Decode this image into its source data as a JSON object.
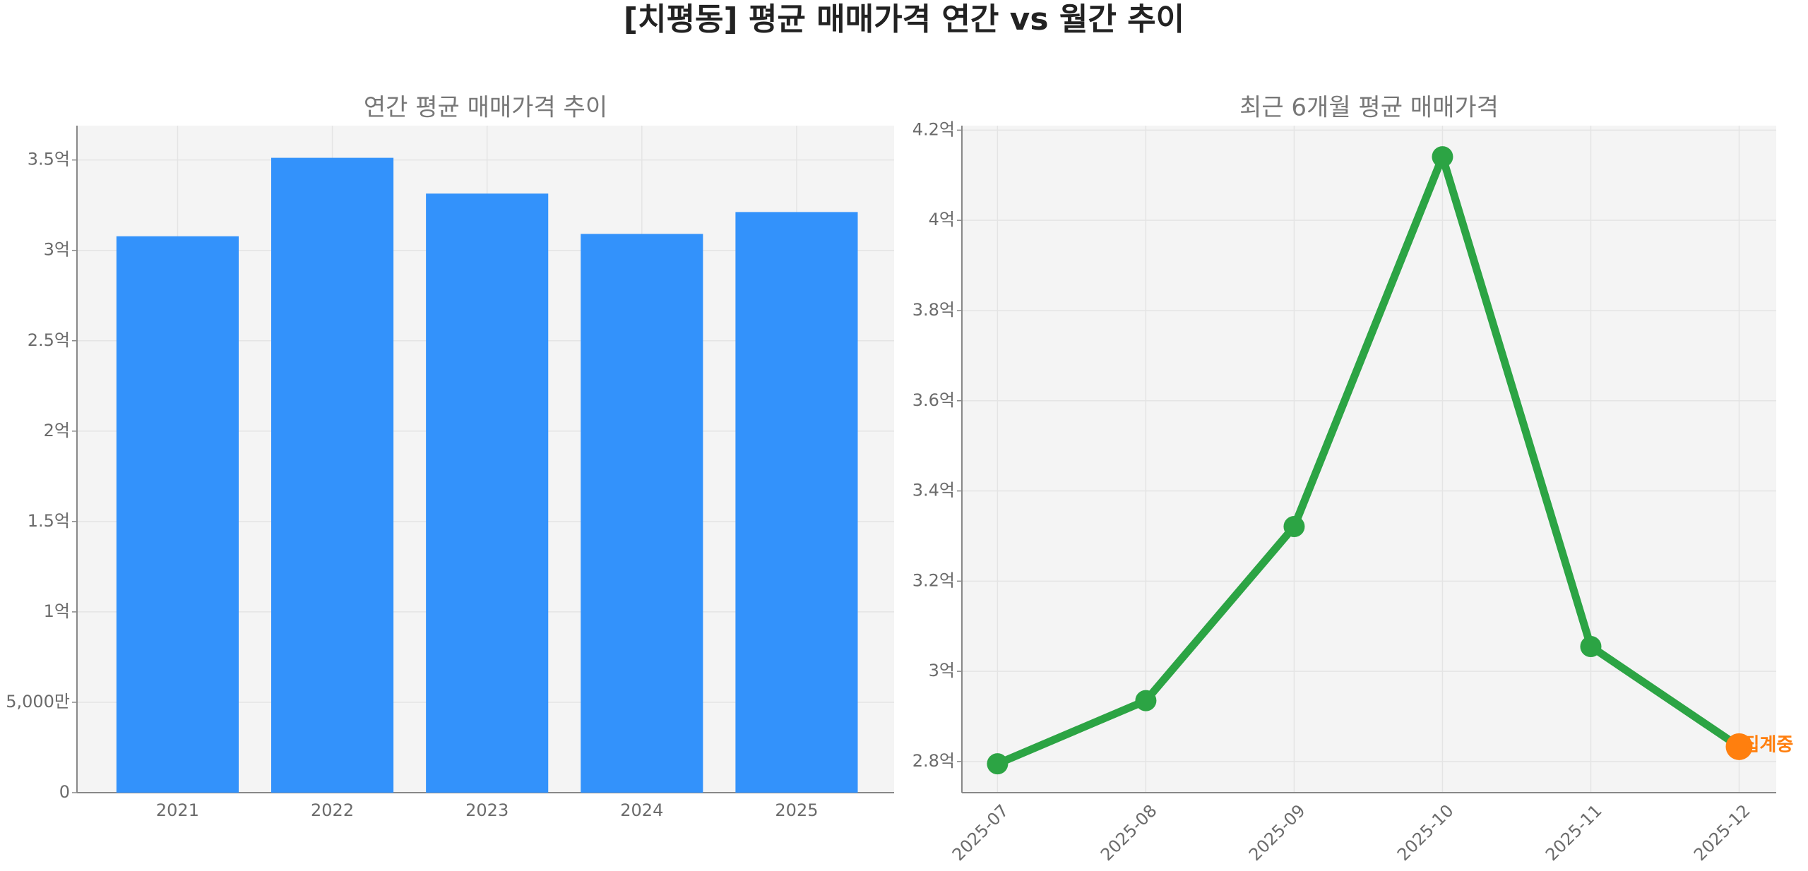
{
  "title": "[치평동] 평균 매매가격 연간 vs 월간 추이",
  "chart_data": [
    {
      "type": "bar",
      "title": "연간 평균 매매가격 추이",
      "categories": [
        "2021",
        "2022",
        "2023",
        "2024",
        "2025"
      ],
      "values": [
        3.078,
        3.512,
        3.314,
        3.091,
        3.212
      ],
      "color": "#3392fb",
      "ylim": [
        0,
        3.69
      ],
      "yticks": [
        0,
        {
          "value": 0.5,
          "label": "5,000만"
        },
        {
          "value": 1,
          "label": "1억"
        },
        {
          "value": 1.5,
          "label": "1.5억"
        },
        {
          "value": 2,
          "label": "2억"
        },
        {
          "value": 2.5,
          "label": "2.5억"
        },
        {
          "value": 3,
          "label": "3억"
        },
        {
          "value": 3.5,
          "label": "3.5억"
        }
      ],
      "grid": true
    },
    {
      "type": "line",
      "title": "최근 6개월 평균 매매가격",
      "categories": [
        "2025-07",
        "2025-08",
        "2025-09",
        "2025-10",
        "2025-11",
        "2025-12"
      ],
      "values": [
        2.795,
        2.935,
        3.321,
        4.141,
        3.055,
        2.833
      ],
      "color": "#2ca444",
      "ylim": [
        2.731,
        4.21
      ],
      "yticks": [
        {
          "value": 2.8,
          "label": "2.8억"
        },
        {
          "value": 3,
          "label": "3억"
        },
        {
          "value": 3.2,
          "label": "3.2억"
        },
        {
          "value": 3.4,
          "label": "3.4억"
        },
        {
          "value": 3.6,
          "label": "3.6억"
        },
        {
          "value": 3.8,
          "label": "3.8억"
        },
        {
          "value": 4,
          "label": "4억"
        },
        {
          "value": 4.2,
          "label": "4.2억"
        }
      ],
      "grid": true,
      "annotation": {
        "text": "집계중",
        "color": "#ff7f0e"
      }
    }
  ]
}
